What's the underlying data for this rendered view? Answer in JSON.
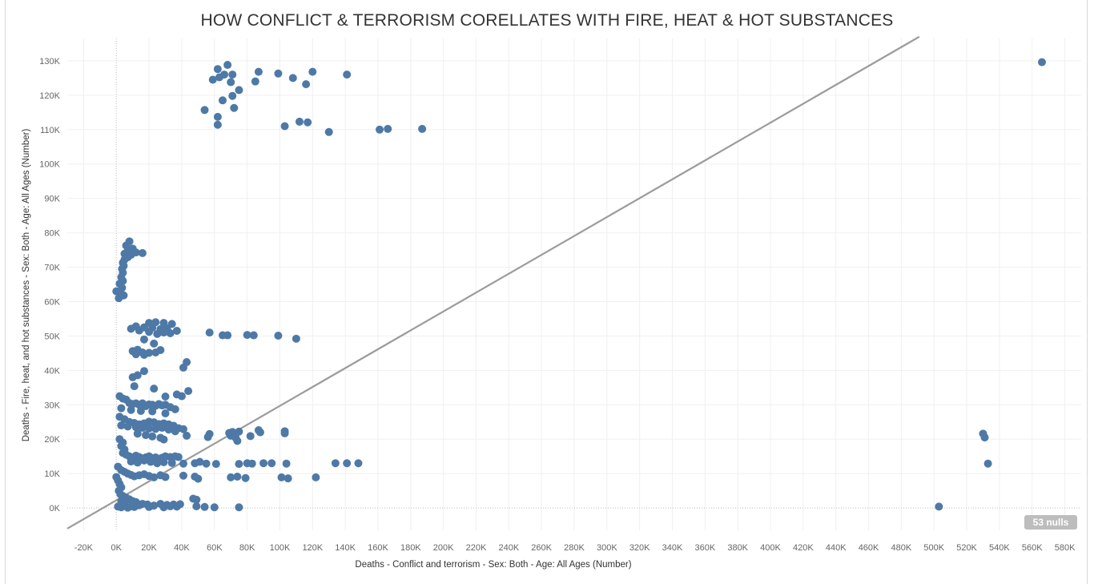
{
  "chart_data": {
    "type": "scatter",
    "title": "HOW CONFLICT & TERRORISM CORELLATES WITH FIRE, HEAT & HOT SUBSTANCES",
    "xlabel": "Deaths - Conflict and terrorism - Sex: Both - Age: All Ages (Number)",
    "ylabel": "Deaths - Fire, heat, and hot substances - Sex: Both - Age: All Ages (Number)",
    "xlim": [
      -30000,
      590000
    ],
    "ylim": [
      -6500,
      136500
    ],
    "x_ticks": [
      "-20K",
      "0K",
      "20K",
      "40K",
      "60K",
      "80K",
      "100K",
      "120K",
      "140K",
      "160K",
      "180K",
      "200K",
      "220K",
      "240K",
      "260K",
      "280K",
      "300K",
      "320K",
      "340K",
      "360K",
      "380K",
      "400K",
      "420K",
      "440K",
      "460K",
      "480K",
      "500K",
      "520K",
      "540K",
      "560K",
      "580K"
    ],
    "x_tick_values": [
      -20000,
      0,
      20000,
      40000,
      60000,
      80000,
      100000,
      120000,
      140000,
      160000,
      180000,
      200000,
      220000,
      240000,
      260000,
      280000,
      300000,
      320000,
      340000,
      360000,
      380000,
      400000,
      420000,
      440000,
      460000,
      480000,
      500000,
      520000,
      540000,
      560000,
      580000
    ],
    "y_ticks": [
      "0K",
      "10K",
      "20K",
      "30K",
      "40K",
      "50K",
      "60K",
      "70K",
      "80K",
      "90K",
      "100K",
      "110K",
      "120K",
      "130K"
    ],
    "y_tick_values": [
      0,
      10000,
      20000,
      30000,
      40000,
      50000,
      60000,
      70000,
      80000,
      90000,
      100000,
      110000,
      120000,
      130000
    ],
    "grid": true,
    "trend_line": {
      "x": [
        -30000,
        491000
      ],
      "y": [
        -6000,
        137000
      ]
    },
    "point_color": "#4e79a7",
    "trend_color": "#9b9b9b",
    "nulls_label": "53 nulls",
    "points": [
      [
        68000,
        128800
      ],
      [
        62000,
        127600
      ],
      [
        87000,
        126800
      ],
      [
        120000,
        126800
      ],
      [
        99000,
        126300
      ],
      [
        141000,
        126000
      ],
      [
        66000,
        126000
      ],
      [
        71000,
        126000
      ],
      [
        63000,
        125200
      ],
      [
        59000,
        124500
      ],
      [
        108000,
        125000
      ],
      [
        85000,
        124000
      ],
      [
        70000,
        123800
      ],
      [
        116000,
        123200
      ],
      [
        75000,
        121500
      ],
      [
        71000,
        119800
      ],
      [
        65000,
        118500
      ],
      [
        72000,
        116300
      ],
      [
        54000,
        115700
      ],
      [
        62000,
        113700
      ],
      [
        112000,
        112300
      ],
      [
        117000,
        112100
      ],
      [
        62000,
        111400
      ],
      [
        103000,
        111000
      ],
      [
        166000,
        110200
      ],
      [
        187000,
        110200
      ],
      [
        161000,
        110000
      ],
      [
        130000,
        109300
      ],
      [
        566000,
        129600
      ],
      [
        8000,
        77500
      ],
      [
        6000,
        76300
      ],
      [
        10000,
        75400
      ],
      [
        7000,
        74800
      ],
      [
        12000,
        74300
      ],
      [
        16000,
        74100
      ],
      [
        5000,
        73900
      ],
      [
        9000,
        73600
      ],
      [
        7000,
        72900
      ],
      [
        5000,
        72200
      ],
      [
        4000,
        71300
      ],
      [
        4500,
        70400
      ],
      [
        3500,
        69500
      ],
      [
        4000,
        68400
      ],
      [
        3000,
        67100
      ],
      [
        4000,
        66000
      ],
      [
        2000,
        65200
      ],
      [
        3500,
        64000
      ],
      [
        0,
        63000
      ],
      [
        3000,
        62300
      ],
      [
        4500,
        61800
      ],
      [
        1500,
        61000
      ],
      [
        20000,
        53800
      ],
      [
        24000,
        54000
      ],
      [
        29000,
        53800
      ],
      [
        34000,
        53500
      ],
      [
        12000,
        52800
      ],
      [
        17000,
        52500
      ],
      [
        22000,
        52400
      ],
      [
        27000,
        52000
      ],
      [
        31000,
        52200
      ],
      [
        37000,
        51500
      ],
      [
        9000,
        52100
      ],
      [
        14000,
        51600
      ],
      [
        20000,
        51200
      ],
      [
        25000,
        50600
      ],
      [
        29000,
        51000
      ],
      [
        33000,
        50800
      ],
      [
        57000,
        51000
      ],
      [
        65000,
        50200
      ],
      [
        68000,
        50200
      ],
      [
        80000,
        50300
      ],
      [
        84000,
        50200
      ],
      [
        99000,
        50100
      ],
      [
        110000,
        49200
      ],
      [
        17000,
        49000
      ],
      [
        23000,
        47800
      ],
      [
        10000,
        45600
      ],
      [
        13000,
        46000
      ],
      [
        16000,
        45200
      ],
      [
        20000,
        45100
      ],
      [
        24000,
        45200
      ],
      [
        27000,
        45900
      ],
      [
        12000,
        44700
      ],
      [
        17000,
        44500
      ],
      [
        43000,
        42400
      ],
      [
        41000,
        40800
      ],
      [
        17000,
        39800
      ],
      [
        13000,
        38600
      ],
      [
        10000,
        38000
      ],
      [
        11000,
        35400
      ],
      [
        23000,
        34700
      ],
      [
        44000,
        34000
      ],
      [
        37000,
        33000
      ],
      [
        40000,
        32500
      ],
      [
        30000,
        32400
      ],
      [
        2000,
        32500
      ],
      [
        4000,
        31800
      ],
      [
        6000,
        31500
      ],
      [
        8000,
        30500
      ],
      [
        10000,
        30200
      ],
      [
        12000,
        30400
      ],
      [
        14000,
        30000
      ],
      [
        16000,
        30400
      ],
      [
        18000,
        29600
      ],
      [
        20000,
        30100
      ],
      [
        22000,
        30000
      ],
      [
        24000,
        29700
      ],
      [
        26000,
        30200
      ],
      [
        28000,
        29800
      ],
      [
        30000,
        30000
      ],
      [
        33000,
        29300
      ],
      [
        36000,
        28700
      ],
      [
        3000,
        29000
      ],
      [
        9000,
        28500
      ],
      [
        15000,
        28200
      ],
      [
        22000,
        28100
      ],
      [
        30000,
        27500
      ],
      [
        2000,
        26500
      ],
      [
        5000,
        25800
      ],
      [
        8000,
        25000
      ],
      [
        11000,
        24700
      ],
      [
        14000,
        24300
      ],
      [
        17000,
        24600
      ],
      [
        20000,
        25100
      ],
      [
        23000,
        24900
      ],
      [
        26000,
        24400
      ],
      [
        29000,
        24600
      ],
      [
        32000,
        24300
      ],
      [
        35000,
        23900
      ],
      [
        38000,
        23200
      ],
      [
        41000,
        22900
      ],
      [
        3000,
        24000
      ],
      [
        7000,
        23700
      ],
      [
        12000,
        23500
      ],
      [
        16000,
        23300
      ],
      [
        20000,
        23100
      ],
      [
        24000,
        23000
      ],
      [
        28000,
        23300
      ],
      [
        32000,
        22800
      ],
      [
        36000,
        22300
      ],
      [
        13000,
        21600
      ],
      [
        18000,
        21200
      ],
      [
        22000,
        20800
      ],
      [
        27000,
        20400
      ],
      [
        29000,
        19900
      ],
      [
        43000,
        21000
      ],
      [
        57000,
        21500
      ],
      [
        56000,
        20600
      ],
      [
        69000,
        21800
      ],
      [
        71000,
        22100
      ],
      [
        75000,
        22200
      ],
      [
        87000,
        22600
      ],
      [
        88000,
        22000
      ],
      [
        82000,
        20900
      ],
      [
        103000,
        22300
      ],
      [
        103000,
        21700
      ],
      [
        73000,
        20400
      ],
      [
        74000,
        19500
      ],
      [
        70000,
        21000
      ],
      [
        530000,
        21600
      ],
      [
        531000,
        20500
      ],
      [
        2000,
        20000
      ],
      [
        4000,
        19000
      ],
      [
        3000,
        18000
      ],
      [
        5000,
        17000
      ],
      [
        4000,
        16000
      ],
      [
        6000,
        15500
      ],
      [
        8000,
        15000
      ],
      [
        10000,
        14600
      ],
      [
        12000,
        15200
      ],
      [
        14000,
        14800
      ],
      [
        16000,
        14400
      ],
      [
        18000,
        14700
      ],
      [
        20000,
        15000
      ],
      [
        22000,
        14500
      ],
      [
        24000,
        14700
      ],
      [
        26000,
        14300
      ],
      [
        28000,
        14600
      ],
      [
        30000,
        15000
      ],
      [
        33000,
        14800
      ],
      [
        36000,
        15000
      ],
      [
        38000,
        14800
      ],
      [
        9000,
        13500
      ],
      [
        13000,
        13200
      ],
      [
        17000,
        13800
      ],
      [
        21000,
        13400
      ],
      [
        25000,
        13000
      ],
      [
        29000,
        13300
      ],
      [
        34000,
        13100
      ],
      [
        41000,
        12900
      ],
      [
        48000,
        13000
      ],
      [
        51000,
        13400
      ],
      [
        55000,
        12900
      ],
      [
        61000,
        12800
      ],
      [
        75000,
        12800
      ],
      [
        80000,
        13000
      ],
      [
        83000,
        12900
      ],
      [
        90000,
        13000
      ],
      [
        95000,
        13000
      ],
      [
        104000,
        12900
      ],
      [
        134000,
        13000
      ],
      [
        141000,
        13000
      ],
      [
        148000,
        13000
      ],
      [
        533000,
        12900
      ],
      [
        1000,
        12000
      ],
      [
        3000,
        11000
      ],
      [
        5000,
        10500
      ],
      [
        7000,
        10000
      ],
      [
        9000,
        9600
      ],
      [
        11000,
        9200
      ],
      [
        14000,
        9500
      ],
      [
        17000,
        9800
      ],
      [
        20000,
        9300
      ],
      [
        23000,
        8900
      ],
      [
        27000,
        9500
      ],
      [
        30000,
        9000
      ],
      [
        41000,
        9400
      ],
      [
        48000,
        9100
      ],
      [
        50000,
        8500
      ],
      [
        70000,
        8900
      ],
      [
        74000,
        9100
      ],
      [
        79000,
        8700
      ],
      [
        101000,
        8900
      ],
      [
        105000,
        8600
      ],
      [
        122000,
        8900
      ],
      [
        0,
        9000
      ],
      [
        1000,
        8000
      ],
      [
        2000,
        7000
      ],
      [
        3000,
        6000
      ],
      [
        1500,
        5000
      ],
      [
        2500,
        4000
      ],
      [
        4000,
        3500
      ],
      [
        6000,
        3000
      ],
      [
        8000,
        2500
      ],
      [
        10000,
        2000
      ],
      [
        3000,
        2000
      ],
      [
        12000,
        1700
      ],
      [
        16000,
        1200
      ],
      [
        5000,
        1000
      ],
      [
        9000,
        500
      ],
      [
        14000,
        800
      ],
      [
        19000,
        1000
      ],
      [
        23000,
        700
      ],
      [
        27000,
        1200
      ],
      [
        31000,
        900
      ],
      [
        35000,
        1000
      ],
      [
        39000,
        1100
      ],
      [
        47000,
        2700
      ],
      [
        49000,
        2400
      ],
      [
        49000,
        500
      ],
      [
        54000,
        300
      ],
      [
        60000,
        200
      ],
      [
        75000,
        200
      ],
      [
        1000,
        400
      ],
      [
        3000,
        200
      ],
      [
        7000,
        100
      ],
      [
        11000,
        300
      ],
      [
        20000,
        300
      ],
      [
        29000,
        200
      ],
      [
        33000,
        500
      ],
      [
        37000,
        400
      ],
      [
        503000,
        400
      ]
    ]
  }
}
